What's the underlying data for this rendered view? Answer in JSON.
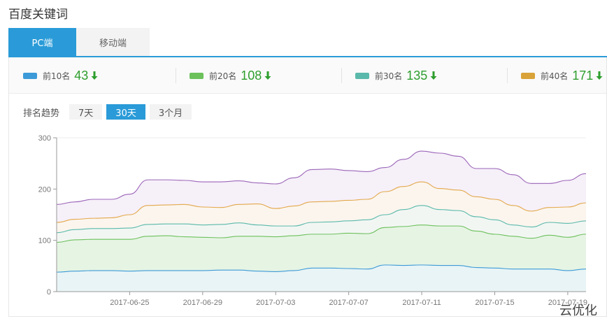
{
  "page": {
    "title": "百度关键词"
  },
  "tabs": [
    {
      "label": "PC端",
      "active": true
    },
    {
      "label": "移动端",
      "active": false
    }
  ],
  "stats": [
    {
      "label": "前10名",
      "value": "43",
      "color": "#3d9ad8",
      "trend": "down"
    },
    {
      "label": "前20名",
      "value": "108",
      "color": "#6cc15c",
      "trend": "down"
    },
    {
      "label": "前30名",
      "value": "135",
      "color": "#5ab9aa",
      "trend": "down"
    },
    {
      "label": "前40名",
      "value": "171",
      "color": "#d9a33a",
      "trend": "down"
    }
  ],
  "range": {
    "label": "排名趋势",
    "options": [
      {
        "label": "7天",
        "active": false
      },
      {
        "label": "30天",
        "active": true
      },
      {
        "label": "3个月",
        "active": false
      }
    ]
  },
  "chart_data": {
    "type": "area",
    "x": [
      "2017-06-21",
      "2017-06-22",
      "2017-06-23",
      "2017-06-24",
      "2017-06-25",
      "2017-06-26",
      "2017-06-27",
      "2017-06-28",
      "2017-06-29",
      "2017-06-30",
      "2017-07-01",
      "2017-07-02",
      "2017-07-03",
      "2017-07-04",
      "2017-07-05",
      "2017-07-06",
      "2017-07-07",
      "2017-07-08",
      "2017-07-09",
      "2017-07-10",
      "2017-07-11",
      "2017-07-12",
      "2017-07-13",
      "2017-07-14",
      "2017-07-15",
      "2017-07-16",
      "2017-07-17",
      "2017-07-18",
      "2017-07-19",
      "2017-07-20"
    ],
    "x_tick_labels": [
      "2017-06-25",
      "2017-06-29",
      "2017-07-03",
      "2017-07-07",
      "2017-07-11",
      "2017-07-15",
      "2017-07-19"
    ],
    "y_ticks": [
      "0",
      "100",
      "200",
      "300"
    ],
    "ylim": [
      0,
      300
    ],
    "series": [
      {
        "color": "#9b66b8",
        "fill": "#f6f0f9",
        "values": [
          170,
          175,
          180,
          180,
          190,
          218,
          218,
          217,
          214,
          214,
          216,
          212,
          210,
          222,
          238,
          239,
          236,
          234,
          242,
          258,
          274,
          270,
          264,
          240,
          240,
          228,
          211,
          211,
          217,
          230
        ]
      },
      {
        "color": "#e3a84a",
        "fill": "#fbf5ee",
        "values": [
          135,
          141,
          143,
          144,
          150,
          168,
          169,
          170,
          165,
          164,
          170,
          171,
          162,
          167,
          175,
          176,
          178,
          180,
          195,
          205,
          214,
          201,
          198,
          185,
          180,
          168,
          157,
          164,
          165,
          173
        ]
      },
      {
        "color": "#5ab9aa",
        "fill": "#f2f6f3",
        "values": [
          115,
          121,
          123,
          123,
          124,
          131,
          132,
          132,
          130,
          131,
          134,
          130,
          128,
          128,
          135,
          136,
          138,
          140,
          150,
          160,
          168,
          160,
          158,
          146,
          140,
          130,
          126,
          135,
          133,
          138
        ]
      },
      {
        "color": "#6cc15c",
        "fill": "#e6f4e4",
        "values": [
          96,
          101,
          102,
          102,
          102,
          108,
          109,
          107,
          106,
          105,
          108,
          108,
          107,
          109,
          112,
          112,
          114,
          113,
          125,
          127,
          130,
          128,
          128,
          118,
          112,
          108,
          104,
          110,
          106,
          112
        ]
      },
      {
        "color": "#3d9ad8",
        "fill": "#e8f4f5",
        "values": [
          38,
          40,
          41,
          41,
          40,
          41,
          41,
          41,
          41,
          42,
          42,
          40,
          39,
          41,
          46,
          46,
          45,
          44,
          52,
          51,
          52,
          51,
          51,
          47,
          46,
          44,
          44,
          44,
          41,
          44
        ]
      }
    ]
  },
  "watermark": "云优化"
}
